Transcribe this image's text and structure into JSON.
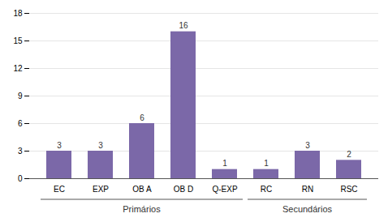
{
  "chart_data": {
    "type": "bar",
    "categories": [
      "EC",
      "EXP",
      "OB A",
      "OB D",
      "Q-EXP",
      "RC",
      "RN",
      "RSC"
    ],
    "values": [
      3,
      3,
      6,
      16,
      1,
      1,
      3,
      2
    ],
    "color": "#7B68A8",
    "ylim": [
      0,
      18
    ],
    "yticks": [
      0,
      3,
      6,
      9,
      12,
      15,
      18
    ],
    "grid": true,
    "data_labels": true,
    "annotations": [
      {
        "text": "Primários",
        "from": "EC",
        "to": "Q-EXP"
      },
      {
        "text": "Secundários",
        "from": "RC",
        "to": "RSC"
      }
    ]
  }
}
